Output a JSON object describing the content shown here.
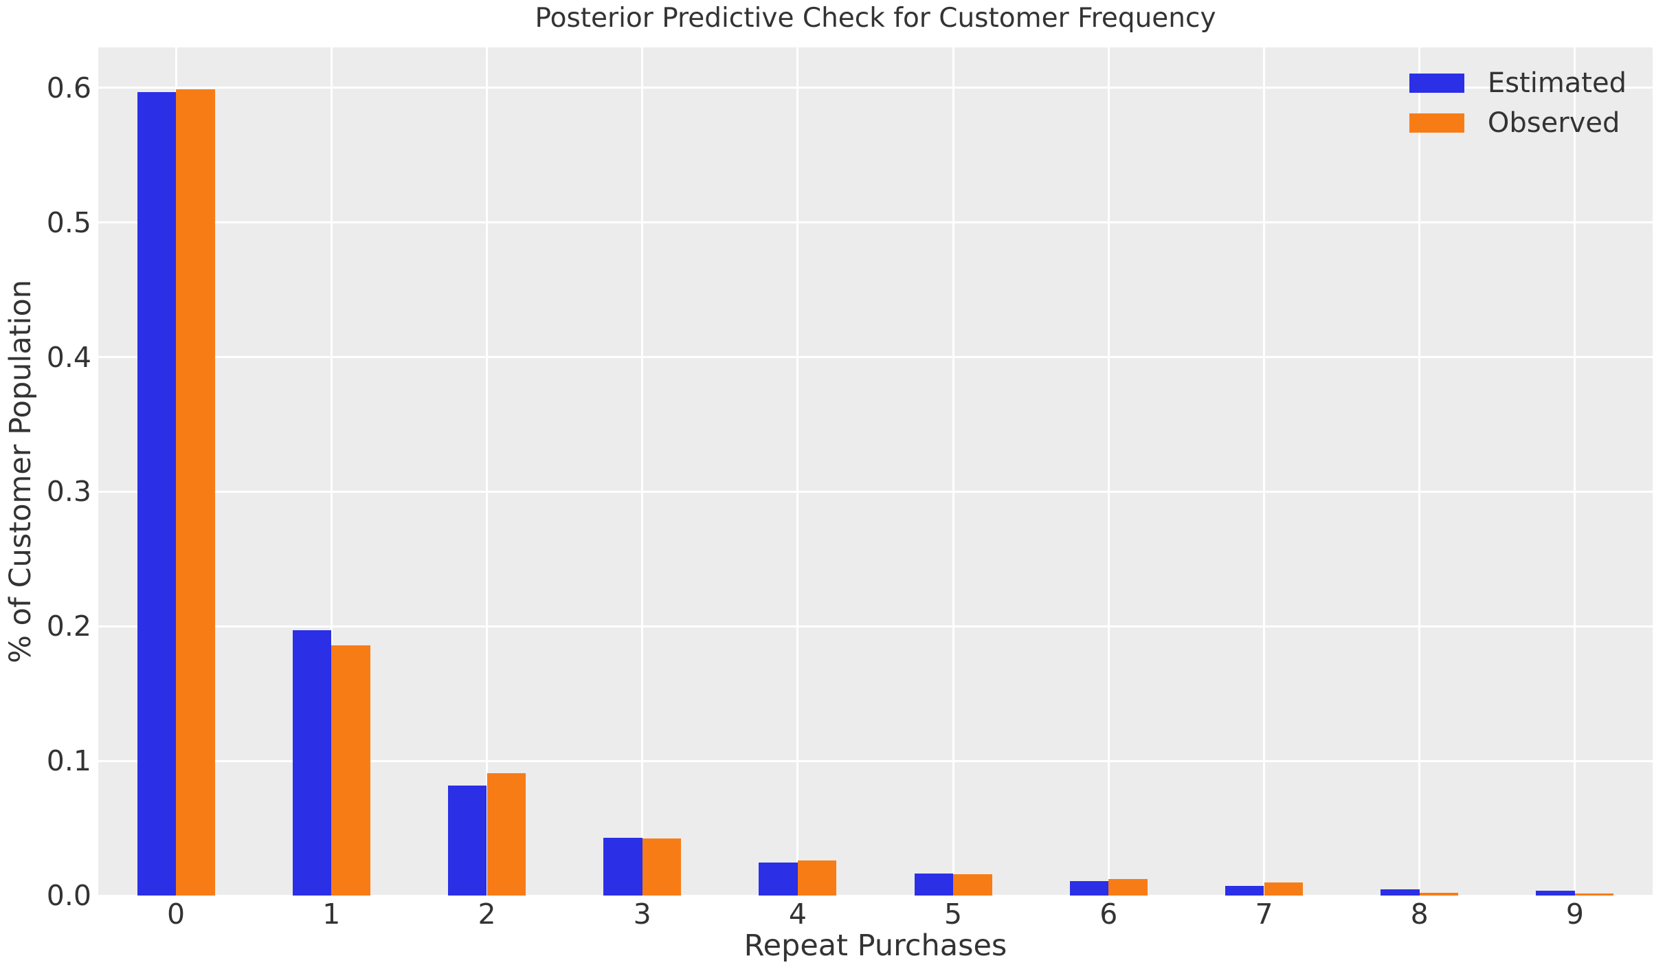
{
  "chart_data": {
    "type": "bar",
    "title": "Posterior Predictive Check for Customer Frequency",
    "xlabel": "Repeat Purchases",
    "ylabel": "% of Customer Population",
    "categories": [
      "0",
      "1",
      "2",
      "3",
      "4",
      "5",
      "6",
      "7",
      "8",
      "9"
    ],
    "series": [
      {
        "name": "Estimated",
        "color": "#2B2FE6",
        "values": [
          0.597,
          0.197,
          0.0815,
          0.0428,
          0.0245,
          0.0163,
          0.0107,
          0.0073,
          0.0046,
          0.0036
        ]
      },
      {
        "name": "Observed",
        "color": "#F87C15",
        "values": [
          0.599,
          0.186,
          0.0907,
          0.0423,
          0.0259,
          0.0158,
          0.0122,
          0.0096,
          0.0022,
          0.0015
        ]
      }
    ],
    "ylim": [
      0,
      0.63
    ],
    "yticks": [
      0,
      0.1,
      0.2,
      0.3,
      0.4,
      0.5,
      0.6
    ],
    "ytick_labels": [
      "0.0",
      "0.1",
      "0.2",
      "0.3",
      "0.4",
      "0.5",
      "0.6"
    ],
    "grid": true,
    "legend_position": "upper right",
    "group_width_fraction": 0.5,
    "colors": {
      "figure_background": "#FFFFFF",
      "plot_background": "#ECECEC",
      "gridline": "#FFFFFF",
      "text": "#333333"
    }
  }
}
